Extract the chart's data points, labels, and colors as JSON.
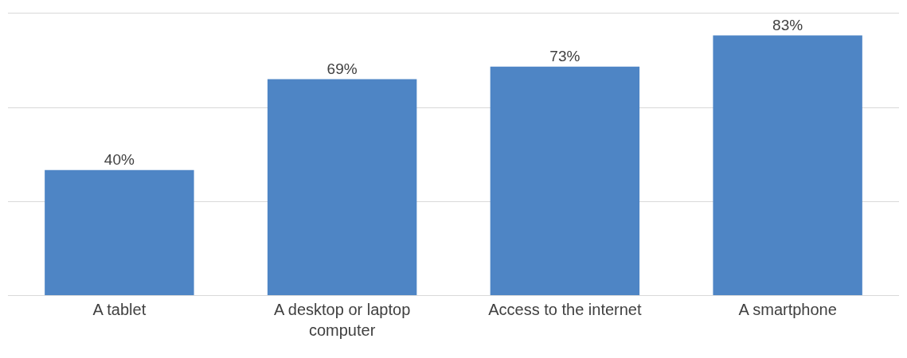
{
  "chart_data": {
    "type": "bar",
    "categories": [
      "A tablet",
      "A desktop or laptop computer",
      "Access to the internet",
      "A smartphone"
    ],
    "values": [
      40,
      69,
      73,
      83
    ],
    "value_labels": [
      "40%",
      "69%",
      "73%",
      "83%"
    ],
    "color": "#4e85c5",
    "ylim": [
      0,
      90
    ],
    "yticks": [
      {
        "value": 0,
        "label": null
      },
      {
        "value": 30,
        "label": null
      },
      {
        "value": 60,
        "label": null
      },
      {
        "value": 90,
        "label": null
      }
    ],
    "tick_labels": "x",
    "grid": "y"
  }
}
